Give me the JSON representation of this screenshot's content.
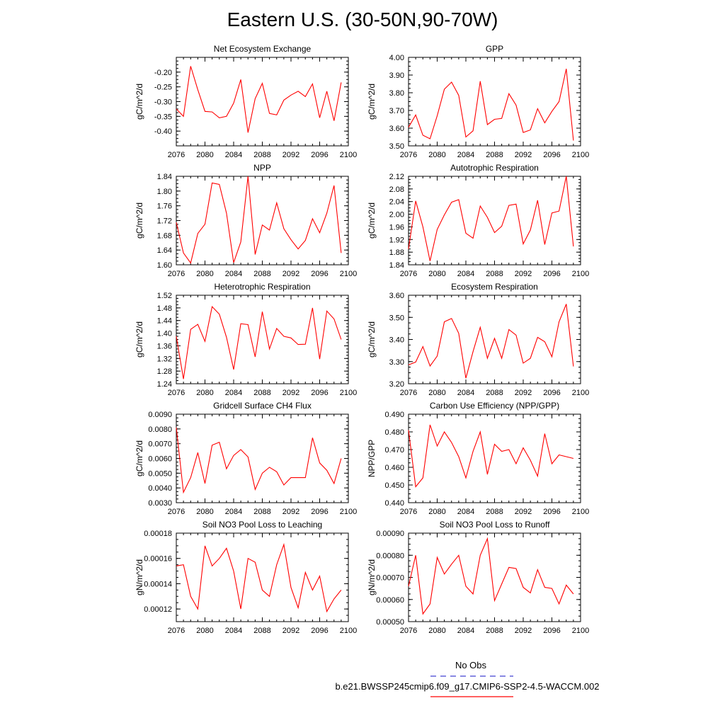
{
  "title": "Eastern U.S. (30-50N,90-70W)",
  "legend": {
    "obs_label": "No Obs",
    "obs_color": "#4040d0",
    "case_label": "b.e21.BWSSP245cmip6.f09_g17.CMIP6-SSP2-4.5-WACCM.002",
    "case_color": "#ff0000"
  },
  "chart_data": [
    {
      "type": "line",
      "title": "Net Ecosystem Exchange",
      "ylabel": "gC/m^2/d",
      "xlim": [
        2076,
        2100
      ],
      "xticks": [
        "2076",
        "2080",
        "2084",
        "2088",
        "2092",
        "2096",
        "2100"
      ],
      "ylim": [
        -0.45,
        -0.15
      ],
      "yticks": [
        "-0.20",
        "-0.25",
        "-0.30",
        "-0.35",
        "-0.40"
      ],
      "x": [
        2076,
        2077,
        2078,
        2079,
        2080,
        2081,
        2082,
        2083,
        2084,
        2085,
        2086,
        2087,
        2088,
        2089,
        2090,
        2091,
        2092,
        2093,
        2094,
        2095,
        2096,
        2097,
        2098,
        2099
      ],
      "series": [
        {
          "values": [
            -0.325,
            -0.35,
            -0.18,
            -0.26,
            -0.333,
            -0.335,
            -0.355,
            -0.35,
            -0.305,
            -0.225,
            -0.405,
            -0.29,
            -0.238,
            -0.34,
            -0.345,
            -0.295,
            -0.278,
            -0.265,
            -0.283,
            -0.24,
            -0.355,
            -0.265,
            -0.365,
            -0.235
          ]
        }
      ]
    },
    {
      "type": "line",
      "title": "GPP",
      "ylabel": "gC/m^2/d",
      "xlim": [
        2076,
        2100
      ],
      "xticks": [
        "2076",
        "2080",
        "2084",
        "2088",
        "2092",
        "2096",
        "2100"
      ],
      "ylim": [
        3.5,
        4.0
      ],
      "yticks": [
        "3.50",
        "3.60",
        "3.70",
        "3.80",
        "3.90",
        "4.00"
      ],
      "x": [
        2076,
        2077,
        2078,
        2079,
        2080,
        2081,
        2082,
        2083,
        2084,
        2085,
        2086,
        2087,
        2088,
        2089,
        2090,
        2091,
        2092,
        2093,
        2094,
        2095,
        2096,
        2097,
        2098,
        2099
      ],
      "series": [
        {
          "values": [
            3.605,
            3.675,
            3.56,
            3.54,
            3.67,
            3.82,
            3.86,
            3.785,
            3.55,
            3.585,
            3.865,
            3.62,
            3.65,
            3.655,
            3.795,
            3.73,
            3.575,
            3.59,
            3.71,
            3.63,
            3.695,
            3.75,
            3.935,
            3.53
          ]
        }
      ]
    },
    {
      "type": "line",
      "title": "NPP",
      "ylabel": "gC/m^2/d",
      "xlim": [
        2076,
        2100
      ],
      "xticks": [
        "2076",
        "2080",
        "2084",
        "2088",
        "2092",
        "2096",
        "2100"
      ],
      "ylim": [
        1.6,
        1.84
      ],
      "yticks": [
        "1.60",
        "1.64",
        "1.68",
        "1.72",
        "1.76",
        "1.80",
        "1.84"
      ],
      "x": [
        2076,
        2077,
        2078,
        2079,
        2080,
        2081,
        2082,
        2083,
        2084,
        2085,
        2086,
        2087,
        2088,
        2089,
        2090,
        2091,
        2092,
        2093,
        2094,
        2095,
        2096,
        2097,
        2098,
        2099
      ],
      "series": [
        {
          "values": [
            1.715,
            1.632,
            1.605,
            1.685,
            1.71,
            1.822,
            1.818,
            1.74,
            1.606,
            1.662,
            1.84,
            1.628,
            1.708,
            1.694,
            1.768,
            1.698,
            1.668,
            1.643,
            1.666,
            1.725,
            1.687,
            1.74,
            1.815,
            1.632
          ]
        }
      ]
    },
    {
      "type": "line",
      "title": "Autotrophic Respiration",
      "ylabel": "gC/m^2/d",
      "xlim": [
        2076,
        2100
      ],
      "xticks": [
        "2076",
        "2080",
        "2084",
        "2088",
        "2092",
        "2096",
        "2100"
      ],
      "ylim": [
        1.84,
        2.12
      ],
      "yticks": [
        "1.84",
        "1.88",
        "1.92",
        "1.96",
        "2.00",
        "2.04",
        "2.08",
        "2.12"
      ],
      "x": [
        2076,
        2077,
        2078,
        2079,
        2080,
        2081,
        2082,
        2083,
        2084,
        2085,
        2086,
        2087,
        2088,
        2089,
        2090,
        2091,
        2092,
        2093,
        2094,
        2095,
        2096,
        2097,
        2098,
        2099
      ],
      "series": [
        {
          "values": [
            1.89,
            2.042,
            1.96,
            1.852,
            1.952,
            1.998,
            2.038,
            2.046,
            1.94,
            1.924,
            2.026,
            1.99,
            1.942,
            1.962,
            2.028,
            2.032,
            1.906,
            1.95,
            2.044,
            1.904,
            2.004,
            2.01,
            2.12,
            1.898
          ]
        }
      ]
    },
    {
      "type": "line",
      "title": "Heterotrophic Respiration",
      "ylabel": "gC/m^2/d",
      "xlim": [
        2076,
        2100
      ],
      "xticks": [
        "2076",
        "2080",
        "2084",
        "2088",
        "2092",
        "2096",
        "2100"
      ],
      "ylim": [
        1.24,
        1.52
      ],
      "yticks": [
        "1.24",
        "1.28",
        "1.32",
        "1.36",
        "1.40",
        "1.44",
        "1.48",
        "1.52"
      ],
      "x": [
        2076,
        2077,
        2078,
        2079,
        2080,
        2081,
        2082,
        2083,
        2084,
        2085,
        2086,
        2087,
        2088,
        2089,
        2090,
        2091,
        2092,
        2093,
        2094,
        2095,
        2096,
        2097,
        2098,
        2099
      ],
      "series": [
        {
          "values": [
            1.39,
            1.255,
            1.412,
            1.428,
            1.374,
            1.484,
            1.46,
            1.387,
            1.285,
            1.43,
            1.427,
            1.325,
            1.468,
            1.35,
            1.415,
            1.39,
            1.385,
            1.364,
            1.365,
            1.48,
            1.318,
            1.47,
            1.445,
            1.38
          ]
        }
      ]
    },
    {
      "type": "line",
      "title": "Ecosystem Respiration",
      "ylabel": "gC/m^2/d",
      "xlim": [
        2076,
        2100
      ],
      "xticks": [
        "2076",
        "2080",
        "2084",
        "2088",
        "2092",
        "2096",
        "2100"
      ],
      "ylim": [
        3.2,
        3.6
      ],
      "yticks": [
        "3.20",
        "3.30",
        "3.40",
        "3.50",
        "3.60"
      ],
      "x": [
        2076,
        2077,
        2078,
        2079,
        2080,
        2081,
        2082,
        2083,
        2084,
        2085,
        2086,
        2087,
        2088,
        2089,
        2090,
        2091,
        2092,
        2093,
        2094,
        2095,
        2096,
        2097,
        2098,
        2099
      ],
      "series": [
        {
          "values": [
            3.285,
            3.298,
            3.368,
            3.28,
            3.325,
            3.48,
            3.495,
            3.428,
            3.225,
            3.345,
            3.455,
            3.315,
            3.405,
            3.315,
            3.445,
            3.42,
            3.293,
            3.315,
            3.41,
            3.39,
            3.322,
            3.48,
            3.56,
            3.278
          ]
        }
      ]
    },
    {
      "type": "line",
      "title": "Gridcell Surface CH4 Flux",
      "ylabel": "gC/m^2/d",
      "xlim": [
        2076,
        2100
      ],
      "xticks": [
        "2076",
        "2080",
        "2084",
        "2088",
        "2092",
        "2096",
        "2100"
      ],
      "ylim": [
        0.003,
        0.009
      ],
      "yticks": [
        "0.0030",
        "0.0040",
        "0.0050",
        "0.0060",
        "0.0070",
        "0.0080",
        "0.0090"
      ],
      "x": [
        2076,
        2077,
        2078,
        2079,
        2080,
        2081,
        2082,
        2083,
        2084,
        2085,
        2086,
        2087,
        2088,
        2089,
        2090,
        2091,
        2092,
        2093,
        2094,
        2095,
        2096,
        2097,
        2098,
        2099
      ],
      "series": [
        {
          "values": [
            0.0081,
            0.0037,
            0.0047,
            0.0064,
            0.0043,
            0.0069,
            0.0071,
            0.0053,
            0.0062,
            0.0066,
            0.0061,
            0.0039,
            0.005,
            0.0054,
            0.0051,
            0.0042,
            0.0047,
            0.0047,
            0.0047,
            0.0074,
            0.0057,
            0.0052,
            0.0043,
            0.006
          ]
        }
      ]
    },
    {
      "type": "line",
      "title": "Carbon Use Efficiency (NPP/GPP)",
      "ylabel": "NPP/GPP",
      "xlim": [
        2076,
        2100
      ],
      "xticks": [
        "2076",
        "2080",
        "2084",
        "2088",
        "2092",
        "2096",
        "2100"
      ],
      "ylim": [
        0.44,
        0.49
      ],
      "yticks": [
        "0.440",
        "0.450",
        "0.460",
        "0.470",
        "0.480",
        "0.490"
      ],
      "x": [
        2076,
        2077,
        2078,
        2079,
        2080,
        2081,
        2082,
        2083,
        2084,
        2085,
        2086,
        2087,
        2088,
        2089,
        2090,
        2091,
        2092,
        2093,
        2094,
        2095,
        2096,
        2097,
        2098,
        2099
      ],
      "series": [
        {
          "values": [
            0.481,
            0.449,
            0.454,
            0.484,
            0.472,
            0.48,
            0.474,
            0.466,
            0.454,
            0.469,
            0.48,
            0.456,
            0.473,
            0.469,
            0.47,
            0.462,
            0.471,
            0.464,
            0.455,
            0.479,
            0.462,
            0.467,
            0.466,
            0.465
          ]
        }
      ]
    },
    {
      "type": "line",
      "title": "Soil NO3 Pool Loss to Leaching",
      "ylabel": "gN/m^2/d",
      "xlim": [
        2076,
        2100
      ],
      "xticks": [
        "2076",
        "2080",
        "2084",
        "2088",
        "2092",
        "2096",
        "2100"
      ],
      "ylim": [
        0.00011,
        0.00018
      ],
      "yticks": [
        "0.00012",
        "0.00014",
        "0.00016",
        "0.00018"
      ],
      "x": [
        2076,
        2077,
        2078,
        2079,
        2080,
        2081,
        2082,
        2083,
        2084,
        2085,
        2086,
        2087,
        2088,
        2089,
        2090,
        2091,
        2092,
        2093,
        2094,
        2095,
        2096,
        2097,
        2098,
        2099
      ],
      "series": [
        {
          "values": [
            0.000154,
            0.000155,
            0.00013,
            0.00012,
            0.00017,
            0.000154,
            0.00016,
            0.000168,
            0.00015,
            0.00012,
            0.00016,
            0.000157,
            0.000135,
            0.00013,
            0.000155,
            0.000171,
            0.000137,
            0.000121,
            0.000149,
            0.000135,
            0.000146,
            0.000118,
            0.000128,
            0.000135
          ]
        }
      ]
    },
    {
      "type": "line",
      "title": "Soil NO3 Pool Loss to Runoff",
      "ylabel": "gN/m^2/d",
      "xlim": [
        2076,
        2100
      ],
      "xticks": [
        "2076",
        "2080",
        "2084",
        "2088",
        "2092",
        "2096",
        "2100"
      ],
      "ylim": [
        0.0005,
        0.0009
      ],
      "yticks": [
        "0.00050",
        "0.00060",
        "0.00070",
        "0.00080",
        "0.00090"
      ],
      "x": [
        2076,
        2077,
        2078,
        2079,
        2080,
        2081,
        2082,
        2083,
        2084,
        2085,
        2086,
        2087,
        2088,
        2089,
        2090,
        2091,
        2092,
        2093,
        2094,
        2095,
        2096,
        2097,
        2098,
        2099
      ],
      "series": [
        {
          "values": [
            0.00066,
            0.0008,
            0.000535,
            0.00058,
            0.00079,
            0.000715,
            0.00076,
            0.0008,
            0.00066,
            0.000625,
            0.0008,
            0.000875,
            0.000595,
            0.00067,
            0.000745,
            0.00074,
            0.000655,
            0.00063,
            0.000735,
            0.000655,
            0.00065,
            0.00058,
            0.000665,
            0.000625
          ]
        }
      ]
    }
  ]
}
